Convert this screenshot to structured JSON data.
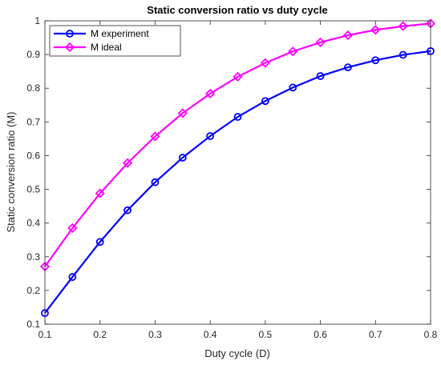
{
  "chart_data": {
    "type": "line",
    "title": "Static conversion ratio vs duty cycle",
    "xlabel": "Duty cycle (D)",
    "ylabel": "Static conversion ratio (M)",
    "xlim": [
      0.1,
      0.8
    ],
    "ylim": [
      0.1,
      1.0
    ],
    "xticks": [
      "0.1",
      "0.2",
      "0.3",
      "0.4",
      "0.5",
      "0.6",
      "0.7",
      "0.8"
    ],
    "yticks": [
      "0.1",
      "0.2",
      "0.3",
      "0.4",
      "0.5",
      "0.6",
      "0.7",
      "0.8",
      "0.9",
      "1"
    ],
    "grid": false,
    "legend_position": "top-left",
    "x": [
      0.1,
      0.15,
      0.2,
      0.25,
      0.3,
      0.35,
      0.4,
      0.45,
      0.5,
      0.55,
      0.6,
      0.65,
      0.7,
      0.75,
      0.8
    ],
    "series": [
      {
        "name": "M experiment",
        "color": "#0000ff",
        "marker": "circle",
        "values": [
          0.133,
          0.24,
          0.344,
          0.438,
          0.521,
          0.594,
          0.658,
          0.715,
          0.762,
          0.802,
          0.836,
          0.862,
          0.883,
          0.899,
          0.91
        ]
      },
      {
        "name": "M ideal",
        "color": "#ff00ff",
        "marker": "diamond",
        "values": [
          0.271,
          0.385,
          0.488,
          0.578,
          0.657,
          0.726,
          0.784,
          0.834,
          0.875,
          0.909,
          0.936,
          0.957,
          0.973,
          0.984,
          0.992
        ]
      }
    ]
  }
}
